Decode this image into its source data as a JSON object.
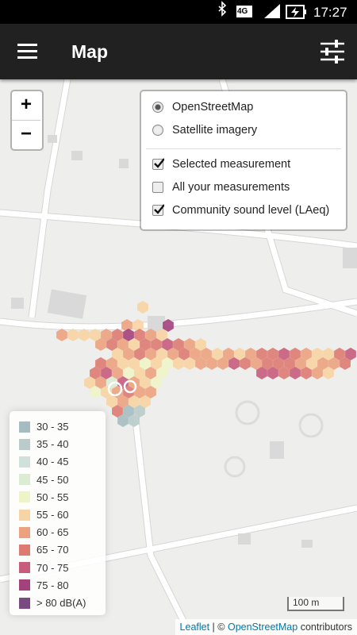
{
  "status_bar": {
    "network": "4G",
    "time": "17:27"
  },
  "app_bar": {
    "title": "Map"
  },
  "zoom": {
    "in": "+",
    "out": "−"
  },
  "layers": {
    "base": [
      {
        "label": "OpenStreetMap",
        "selected": true
      },
      {
        "label": "Satellite imagery",
        "selected": false
      }
    ],
    "overlays": [
      {
        "label": "Selected measurement",
        "checked": true
      },
      {
        "label": "All your measurements",
        "checked": false
      },
      {
        "label": "Community sound level (LAeq)",
        "checked": true
      }
    ]
  },
  "legend": {
    "items": [
      {
        "label": "30 - 35",
        "color": "#a5bcc0"
      },
      {
        "label": "35 - 40",
        "color": "#b9cbca"
      },
      {
        "label": "40 - 45",
        "color": "#cfe1da"
      },
      {
        "label": "45 - 50",
        "color": "#dcebd3"
      },
      {
        "label": "50 - 55",
        "color": "#eef4c8"
      },
      {
        "label": "55 - 60",
        "color": "#f7d4a3"
      },
      {
        "label": "60 - 65",
        "color": "#eca27f"
      },
      {
        "label": "65 - 70",
        "color": "#dd7b72"
      },
      {
        "label": "70 - 75",
        "color": "#c75c7d"
      },
      {
        "label": "75 - 80",
        "color": "#a3417d"
      },
      {
        "label": "> 80 dB(A)",
        "color": "#7a4b80"
      }
    ]
  },
  "scale": "100 m",
  "attribution": {
    "leaflet": "Leaflet",
    "separator": " | © ",
    "osm": "OpenStreetMap",
    "suffix": " contributors"
  }
}
